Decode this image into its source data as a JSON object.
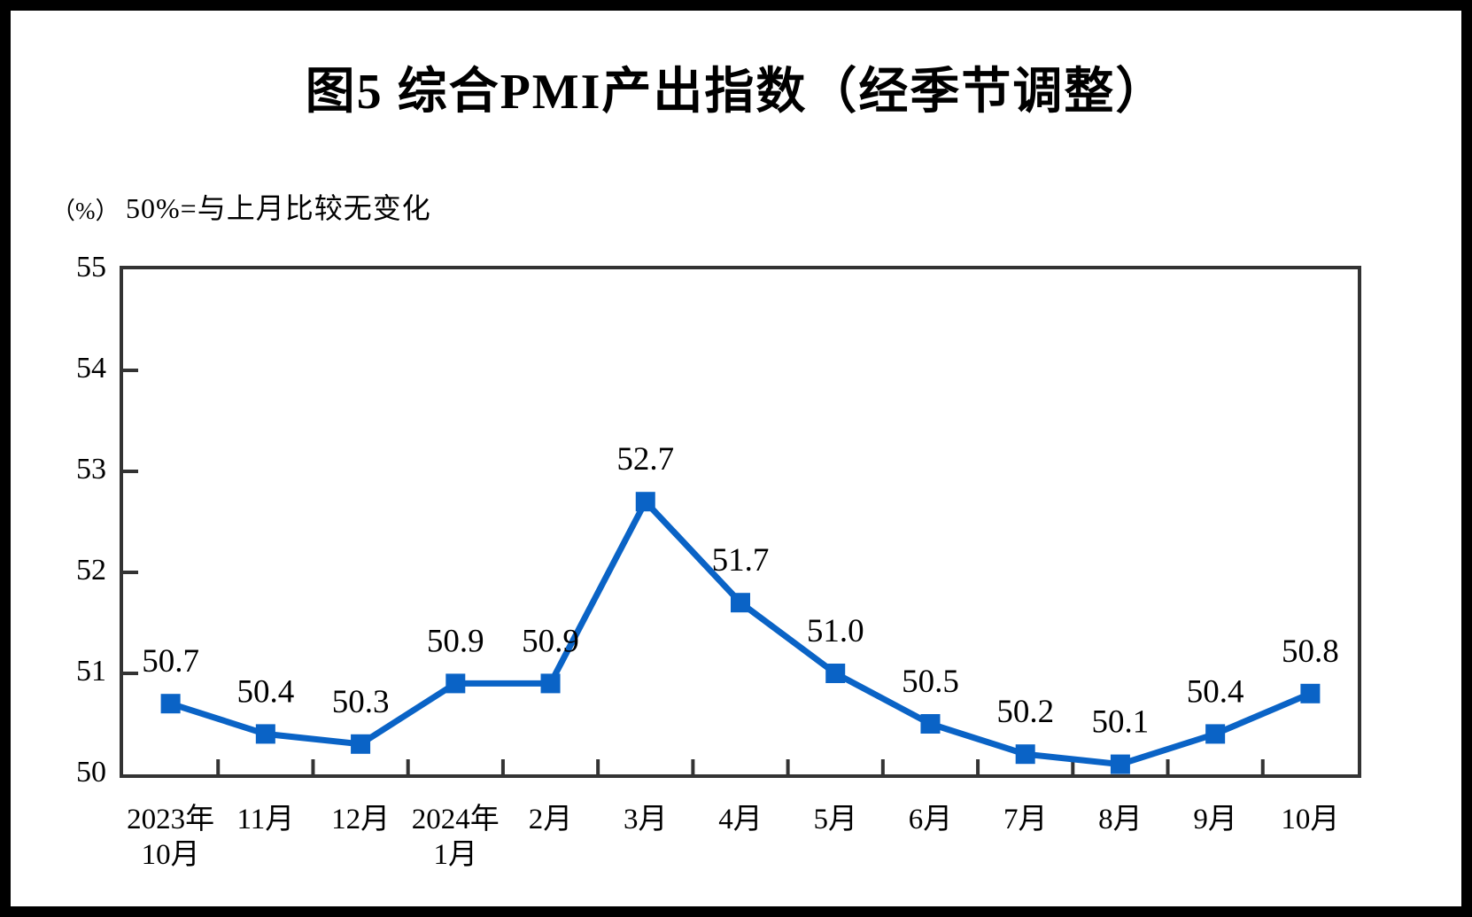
{
  "colors": {
    "line": "#0A63C6",
    "axis": "#333333",
    "text": "#000000",
    "background": "#ffffff",
    "frame": "#000000"
  },
  "chart_data": {
    "type": "line",
    "title": "图5  综合PMI产出指数（经季节调整）",
    "unit_label": "（%）",
    "annotation": "50%=与上月比较无变化",
    "categories": [
      "2023年\n10月",
      "11月",
      "12月",
      "2024年\n1月",
      "2月",
      "3月",
      "4月",
      "5月",
      "6月",
      "7月",
      "8月",
      "9月",
      "10月"
    ],
    "values": [
      50.7,
      50.4,
      50.3,
      50.9,
      50.9,
      52.7,
      51.7,
      51.0,
      50.5,
      50.2,
      50.1,
      50.4,
      50.8
    ],
    "point_labels": [
      "50.7",
      "50.4",
      "50.3",
      "50.9",
      "50.9",
      "52.7",
      "51.7",
      "51.0",
      "50.5",
      "50.2",
      "50.1",
      "50.4",
      "50.8"
    ],
    "xlabel": "",
    "ylabel": "%",
    "ylim": [
      50,
      55
    ],
    "yticks": [
      55,
      54,
      53,
      52,
      51,
      50
    ],
    "grid": false,
    "legend_position": "none",
    "marker": "square"
  }
}
